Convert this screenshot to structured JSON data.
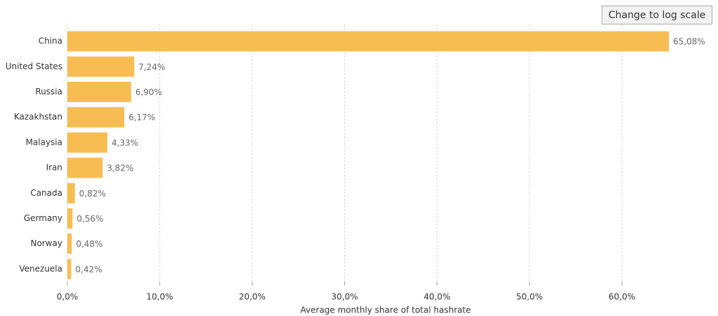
{
  "controls": {
    "scale_button": "Change to log scale"
  },
  "chart_data": {
    "type": "hbar",
    "x_label": "Average monthly share of total hashrate",
    "categories": [
      "China",
      "United States",
      "Russia",
      "Kazakhstan",
      "Malaysia",
      "Iran",
      "Canada",
      "Germany",
      "Norway",
      "Venezuela"
    ],
    "values": [
      65.08,
      7.24,
      6.9,
      6.17,
      4.33,
      3.82,
      0.82,
      0.56,
      0.48,
      0.42
    ],
    "value_labels": [
      "65,08%",
      "7,24%",
      "6,90%",
      "6,17%",
      "4,33%",
      "3,82%",
      "0,82%",
      "0,56%",
      "0,48%",
      "0,42%"
    ],
    "color": "#f8bd52",
    "xlim": [
      0,
      70
    ],
    "xticks": [
      {
        "value": 0,
        "label": "0,0%"
      },
      {
        "value": 10,
        "label": "10,0%"
      },
      {
        "value": 20,
        "label": "20,0%"
      },
      {
        "value": 30,
        "label": "30,0%"
      },
      {
        "value": 40,
        "label": "40,0%"
      },
      {
        "value": 50,
        "label": "50,0%"
      },
      {
        "value": 60,
        "label": "60,0%"
      }
    ],
    "grid": true
  }
}
